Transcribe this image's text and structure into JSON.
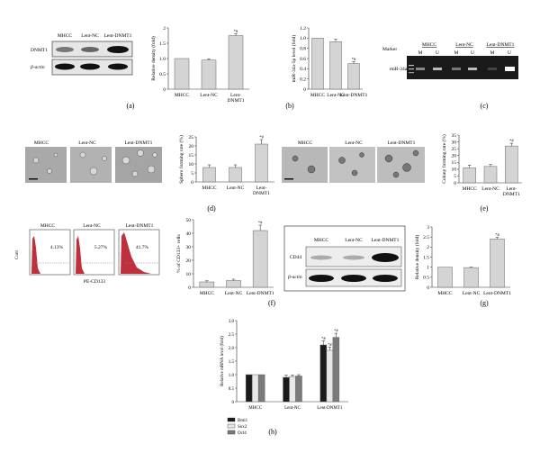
{
  "figure": {
    "panel_letters": [
      "(a)",
      "(b)",
      "(c)",
      "(d)",
      "(e)",
      "(f)",
      "(g)",
      "(h)"
    ],
    "groups": [
      "MHCC",
      "Lent-NC",
      "Lent-DNMT1"
    ],
    "sig_mark": "*#",
    "colors": {
      "bar": "#d4d4d4",
      "bar_edge": "#666666",
      "gel_bg": "#1a1a1a",
      "flow_fill": "#c0303c"
    }
  },
  "blot_a": {
    "header": [
      "MHCC",
      "Lent-NC",
      "Lent-DNMT1"
    ],
    "rows": [
      "DNMT1",
      "β-actin"
    ]
  },
  "gel_c": {
    "marker": "Marker",
    "groups": [
      "MHCC",
      "Lent-NC",
      "Lent-DNMT1"
    ],
    "lanes": [
      "M",
      "U",
      "M",
      "U",
      "M",
      "U"
    ],
    "band": "miR-34a"
  },
  "images_d": {
    "labels": [
      "MHCC",
      "Lent-NC",
      "Lent-DNMT1"
    ]
  },
  "images_e": {
    "labels": [
      "MHCC",
      "Lent-NC",
      "Lent-DNMT1"
    ]
  },
  "flow_f": {
    "labels": [
      "MHCC",
      "Lent-NC",
      "Lent-DNMT1"
    ],
    "percents": [
      "4.13%",
      "5.27%",
      "41.7%"
    ],
    "ylabel": "Cont",
    "xlabel": "PE-CD133"
  },
  "blot_g": {
    "header": [
      "MHCC",
      "Lent-NC",
      "Lent-DNMT1"
    ],
    "rows": [
      "CD44",
      "β-actin"
    ]
  },
  "chart_data": [
    {
      "id": "a",
      "type": "bar",
      "categories": [
        "MHCC",
        "Lent-NC",
        "Lent-DNMT1"
      ],
      "values": [
        1.0,
        0.95,
        1.75
      ],
      "errors": [
        0.0,
        0.04,
        0.06
      ],
      "sig": [
        false,
        false,
        true
      ],
      "ylabel": "Relative density (fold)",
      "ylim": [
        0,
        2
      ],
      "yticks": [
        "0",
        "0.5",
        "1.0",
        "1.5",
        "2"
      ],
      "xtick_lines": [
        [
          "MHCC"
        ],
        [
          "Lent-NC"
        ],
        [
          "Lent-",
          "DNMT1"
        ]
      ]
    },
    {
      "id": "b",
      "type": "bar",
      "categories": [
        "MHCC",
        "Lent-NC",
        "Lent-DNMT1"
      ],
      "values": [
        1.0,
        0.93,
        0.5
      ],
      "errors": [
        0.0,
        0.05,
        0.04
      ],
      "sig": [
        false,
        false,
        true
      ],
      "ylabel": "miR-34a-5p level (fold)",
      "ylim": [
        0,
        1.2
      ],
      "yticks": [
        "0",
        "0.2",
        "0.4",
        "0.6",
        "0.8",
        "1.0",
        "1.2"
      ],
      "xtick_lines": [
        [
          "MHCC"
        ],
        [
          "Lent-NC"
        ],
        [
          "Lent-DNMT1"
        ]
      ]
    },
    {
      "id": "d",
      "type": "bar",
      "categories": [
        "MHCC",
        "Lent-NC",
        "Lent-DNMT1"
      ],
      "values": [
        8,
        8,
        21
      ],
      "errors": [
        1.5,
        1.5,
        2.5
      ],
      "sig": [
        false,
        false,
        true
      ],
      "ylabel": "Sphere forming rate (%)",
      "ylim": [
        0,
        25
      ],
      "yticks": [
        "0",
        "5",
        "10",
        "15",
        "20",
        "25"
      ],
      "xtick_lines": [
        [
          "MHCC"
        ],
        [
          "Lent-NC"
        ],
        [
          "Lent-",
          "DNMT1"
        ]
      ]
    },
    {
      "id": "e",
      "type": "bar",
      "categories": [
        "MHCC",
        "Lent-NC",
        "Lent-DNMT1"
      ],
      "values": [
        11,
        12,
        27
      ],
      "errors": [
        2,
        1.5,
        2
      ],
      "sig": [
        false,
        false,
        true
      ],
      "ylabel": "Colony forming rate (%)",
      "ylim": [
        0,
        35
      ],
      "yticks": [
        "0",
        "5",
        "10",
        "15",
        "20",
        "25",
        "30",
        "35"
      ],
      "xtick_lines": [
        [
          "MHCC"
        ],
        [
          "Lent-NC"
        ],
        [
          "Lent-",
          "DNMT1"
        ]
      ]
    },
    {
      "id": "f",
      "type": "bar",
      "categories": [
        "MHCC",
        "Lent-NC",
        "Lent-DNMT1"
      ],
      "values": [
        4,
        5,
        42
      ],
      "errors": [
        0.8,
        1.0,
        4
      ],
      "sig": [
        false,
        false,
        true
      ],
      "ylabel": "% of CD133+ cells",
      "ylim": [
        0,
        50
      ],
      "yticks": [
        "0",
        "10",
        "20",
        "30",
        "40",
        "50"
      ],
      "xtick_lines": [
        [
          "MHCC"
        ],
        [
          "Lent-NC"
        ],
        [
          "Lent-DNMT1"
        ]
      ]
    },
    {
      "id": "g",
      "type": "bar",
      "categories": [
        "MHCC",
        "Lent-NC",
        "Lent-DNMT1"
      ],
      "values": [
        1.0,
        0.98,
        2.4
      ],
      "errors": [
        0.0,
        0.02,
        0.08
      ],
      "sig": [
        false,
        false,
        true
      ],
      "ylabel": "Relative density (fold)",
      "ylim": [
        0,
        3
      ],
      "yticks": [
        "0",
        "0.5",
        "1",
        "1.5",
        "2",
        "2.5",
        "3"
      ],
      "xtick_lines": [
        [
          "MHCC"
        ],
        [
          "Lent-NC"
        ],
        [
          "Lent-DNMT1"
        ]
      ]
    },
    {
      "id": "h",
      "type": "bar",
      "categories": [
        "MHCC",
        "Lent-NC",
        "Lent-DNMT1"
      ],
      "ylabel": "Relative mRNA level (fold)",
      "ylim": [
        0,
        3
      ],
      "yticks": [
        "0",
        "0.5",
        "1.0",
        "1.5",
        "2.0",
        "2.5",
        "3.0"
      ],
      "xtick_lines": [
        [
          "MHCC"
        ],
        [
          "Lent-NC"
        ],
        [
          "Lent-DNMT1"
        ]
      ],
      "series": [
        {
          "name": "Bmi1",
          "values": [
            1.0,
            0.9,
            2.1
          ],
          "errors": [
            0.0,
            0.08,
            0.15
          ],
          "sig": [
            false,
            false,
            true
          ],
          "color": "#1a1a1a"
        },
        {
          "name": "Sox2",
          "values": [
            1.0,
            0.93,
            1.9
          ],
          "errors": [
            0.0,
            0.06,
            0.12
          ],
          "sig": [
            false,
            false,
            true
          ],
          "color": "#e8e8e8"
        },
        {
          "name": "Oct4",
          "values": [
            1.0,
            0.95,
            2.38
          ],
          "errors": [
            0.0,
            0.05,
            0.15
          ],
          "sig": [
            false,
            false,
            true
          ],
          "color": "#7a7a7a"
        }
      ]
    }
  ]
}
